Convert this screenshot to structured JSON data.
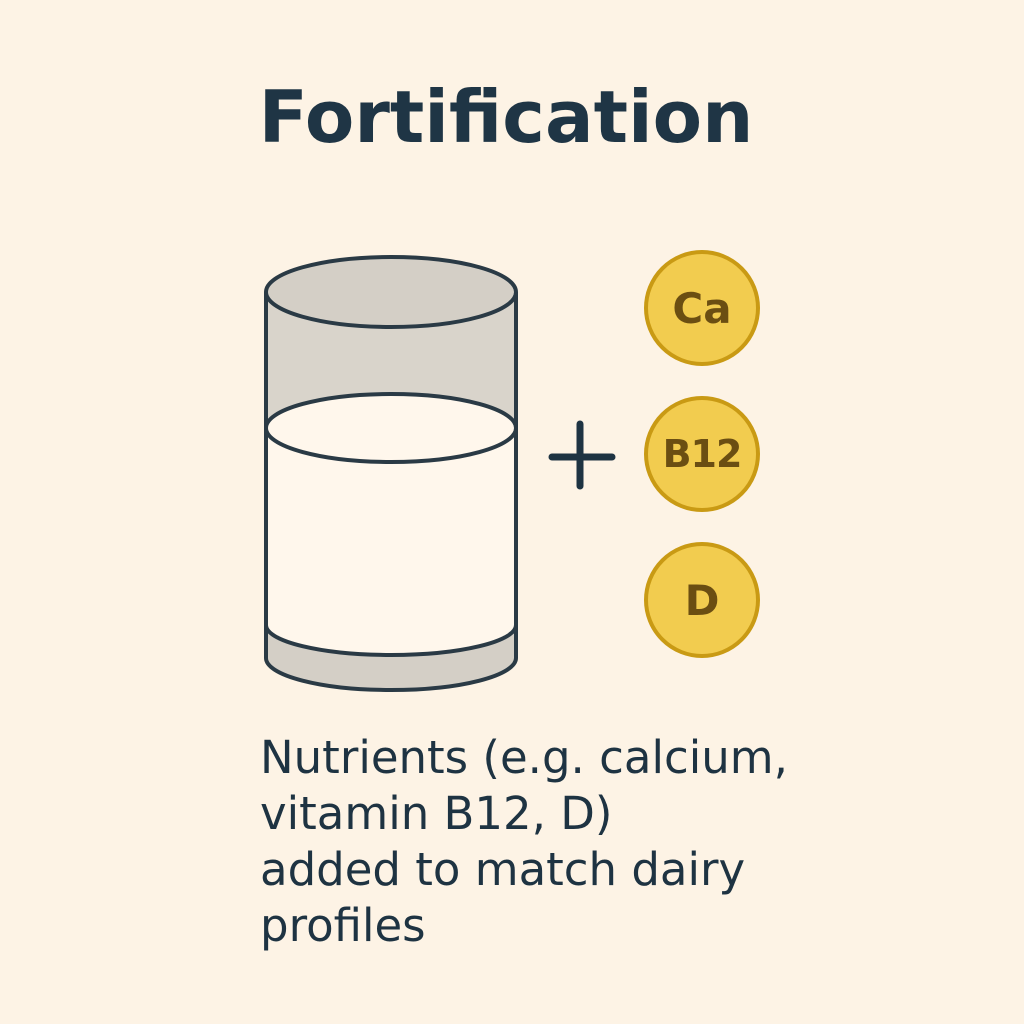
{
  "title": "Fortification",
  "nutrients": [
    {
      "symbol": "Ca"
    },
    {
      "symbol": "B12"
    },
    {
      "symbol": "D"
    }
  ],
  "caption_lines": [
    "Nutrients (e.g. calcium,",
    "vitamin B12, D)",
    "added to match dairy",
    "profiles"
  ],
  "colors": {
    "background": "#fdf3e5",
    "text": "#1e3342",
    "outline": "#2a3a45",
    "glass_tint": "#d8d2c8",
    "liquid": "#fff7ec",
    "coin_fill": "#f2cc4f",
    "coin_stroke": "#c99a14"
  },
  "icons": {
    "glass": "glass-of-milk-icon",
    "plus": "plus-icon",
    "coin": "nutrient-coin-icon"
  }
}
